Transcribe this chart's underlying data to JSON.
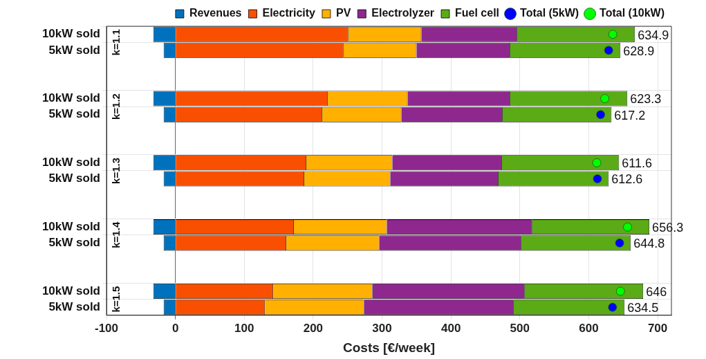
{
  "chart_data": {
    "type": "bar",
    "orientation": "horizontal",
    "stacked": true,
    "xlabel": "Costs [€/week]",
    "categories": [
      "10kW sold",
      "5kW sold",
      null,
      null,
      "10kW sold",
      "5kW sold",
      null,
      null,
      "10kW sold",
      "5kW sold",
      null,
      null,
      "10kW sold",
      "5kW sold",
      null,
      null,
      "10kW sold",
      "5kW sold"
    ],
    "series": [
      {
        "name": "Revenues",
        "color": "#0072bd",
        "values": [
          -32,
          -17,
          null,
          null,
          -32,
          -17,
          null,
          null,
          -32,
          -17,
          null,
          null,
          -32,
          -17,
          null,
          null,
          -32,
          -17
        ]
      },
      {
        "name": "Electricity",
        "color": "#f94f00",
        "values": [
          251,
          244,
          null,
          null,
          221,
          213,
          null,
          null,
          190,
          187,
          null,
          null,
          172,
          161,
          null,
          null,
          142,
          130
        ]
      },
      {
        "name": "PV",
        "color": "#ffb000",
        "values": [
          106,
          106,
          null,
          null,
          116,
          115,
          null,
          null,
          125,
          125,
          null,
          null,
          135,
          135,
          null,
          null,
          144,
          144
        ]
      },
      {
        "name": "Electrolyzer",
        "color": "#8e288e",
        "values": [
          139,
          136,
          null,
          null,
          149,
          147,
          null,
          null,
          159,
          157,
          null,
          null,
          211,
          206,
          null,
          null,
          221,
          217
        ]
      },
      {
        "name": "Fuel cell",
        "color": "#5aab16",
        "values": [
          171,
          160,
          null,
          null,
          170,
          158,
          null,
          null,
          170,
          160,
          null,
          null,
          170,
          159,
          null,
          null,
          172,
          161
        ]
      },
      {
        "name": "Total (5kW)",
        "type": "scatter",
        "color": "#0000ff",
        "values": [
          null,
          628.9,
          null,
          null,
          null,
          617.2,
          null,
          null,
          null,
          612.6,
          null,
          null,
          null,
          644.8,
          null,
          null,
          null,
          634.5
        ],
        "value_labels": [
          null,
          "628.9",
          null,
          null,
          null,
          "617.2",
          null,
          null,
          null,
          "612.6",
          null,
          null,
          null,
          "644.8",
          null,
          null,
          null,
          "634.5"
        ]
      },
      {
        "name": "Total (10kW)",
        "type": "scatter",
        "color": "#00ff00",
        "values": [
          634.9,
          null,
          null,
          null,
          623.3,
          null,
          null,
          null,
          611.6,
          null,
          null,
          null,
          656.3,
          null,
          null,
          null,
          646,
          null
        ],
        "value_labels": [
          "634.9",
          null,
          null,
          null,
          "623.3",
          null,
          null,
          null,
          "611.6",
          null,
          null,
          null,
          "656.3",
          null,
          null,
          null,
          "646",
          null
        ]
      }
    ],
    "xlim": [
      -100,
      720
    ],
    "xticks": [
      -100,
      0,
      100,
      200,
      300,
      400,
      500,
      600,
      700
    ],
    "annotations": [
      "k=1.1",
      "k=1.2",
      "k=1.3",
      "k=1.4",
      "k=1.5"
    ],
    "grid": true,
    "legend": "top right",
    "marker": "circle"
  }
}
